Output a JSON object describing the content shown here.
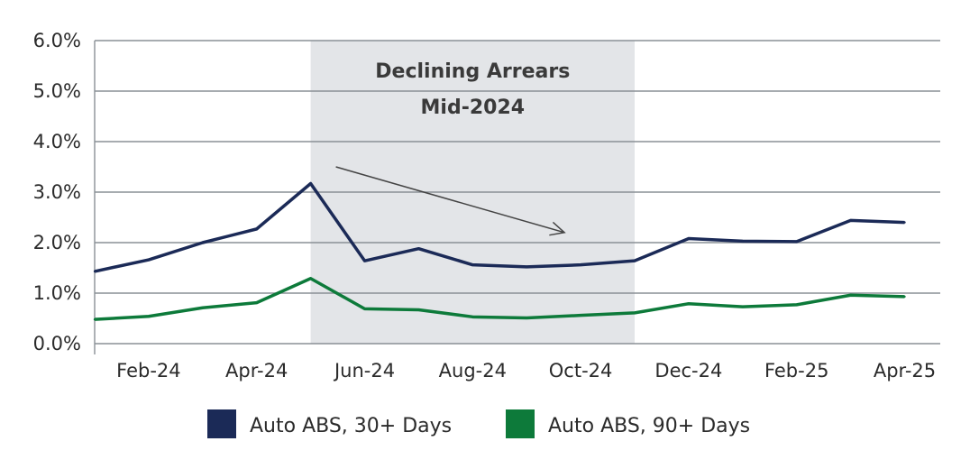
{
  "chart_data": {
    "type": "line",
    "title": "",
    "xlabel": "",
    "ylabel": "",
    "x": [
      "Jan-24",
      "Feb-24",
      "Mar-24",
      "Apr-24",
      "May-24",
      "Jun-24",
      "Jul-24",
      "Aug-24",
      "Sep-24",
      "Oct-24",
      "Nov-24",
      "Dec-24",
      "Jan-25",
      "Feb-25",
      "Mar-25",
      "Apr-25"
    ],
    "x_tick_labels": [
      "Feb-24",
      "Apr-24",
      "Jun-24",
      "Aug-24",
      "Oct-24",
      "Dec-24",
      "Feb-25",
      "Apr-25"
    ],
    "ylim": [
      0,
      6
    ],
    "y_ticks": [
      0,
      1,
      2,
      3,
      4,
      5,
      6
    ],
    "y_tick_labels": [
      "0.0%",
      "1.0%",
      "2.0%",
      "3.0%",
      "4.0%",
      "5.0%",
      "6.0%"
    ],
    "grid": true,
    "legend_position": "bottom",
    "series": [
      {
        "name": "Auto ABS, 30+ Days",
        "color": "#1b2a57",
        "values": [
          1.43,
          1.66,
          2.0,
          2.27,
          3.17,
          1.64,
          1.88,
          1.56,
          1.52,
          1.56,
          1.64,
          2.08,
          2.03,
          2.02,
          2.44,
          2.4
        ]
      },
      {
        "name": "Auto ABS, 90+ Days",
        "color": "#0d7a3a",
        "values": [
          0.48,
          0.54,
          0.71,
          0.81,
          1.29,
          0.69,
          0.67,
          0.53,
          0.51,
          0.56,
          0.61,
          0.79,
          0.73,
          0.77,
          0.96,
          0.93
        ]
      }
    ],
    "annotations": [
      {
        "type": "shaded-region",
        "from": "May-24",
        "to": "Nov-24",
        "color": "#e3e5e8",
        "label_lines": [
          "Declining Arrears",
          "Mid-2024"
        ]
      },
      {
        "type": "arrow",
        "from": {
          "x": "May-24",
          "y": 3.5
        },
        "to": {
          "x": "Oct-24",
          "y": 2.2
        },
        "color": "#444444"
      }
    ]
  }
}
